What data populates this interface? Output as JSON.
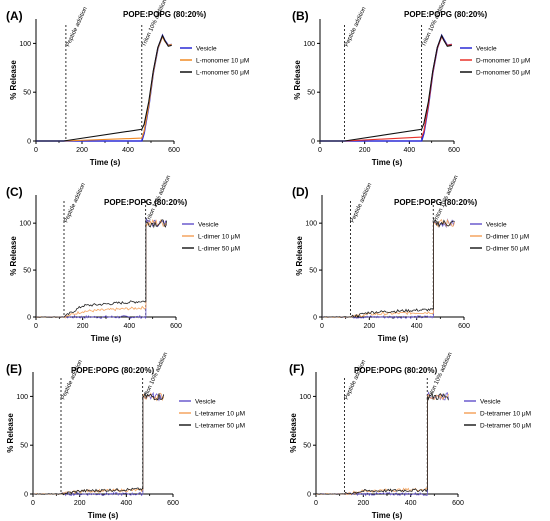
{
  "chart_data": [
    {
      "panel": "(A)",
      "type": "line",
      "title": "POPE:POPG (80:20%)",
      "xlabel": "Time (s)",
      "ylabel": "% Release",
      "xlim": [
        0,
        600
      ],
      "ylim": [
        0,
        125
      ],
      "xticks": [
        "0",
        "200",
        "400",
        "600"
      ],
      "yticks": [
        "0",
        "50",
        "100"
      ],
      "annotations": [
        {
          "text": "Peptide addition",
          "x": 130
        },
        {
          "text": "Triton 10% addition",
          "x": 460
        }
      ],
      "legend_position": "right",
      "noisy": false,
      "series": [
        {
          "name": "Vesicle",
          "color": "#2b2bd6",
          "x": [
            0,
            120,
            460,
            470,
            490,
            510,
            530,
            550,
            560,
            575,
            590
          ],
          "y": [
            0,
            0,
            0,
            8,
            35,
            70,
            95,
            108,
            103,
            98,
            99
          ]
        },
        {
          "name": "L-monomer 10 μM",
          "color": "#f08a24",
          "x": [
            0,
            120,
            460,
            470,
            490,
            510,
            530,
            550,
            560,
            575,
            590
          ],
          "y": [
            0,
            0,
            3,
            10,
            36,
            70,
            95,
            107,
            102,
            98,
            99
          ]
        },
        {
          "name": "L-monomer 50 μM",
          "color": "#111111",
          "x": [
            0,
            120,
            460,
            470,
            490,
            510,
            530,
            550,
            560,
            575,
            590
          ],
          "y": [
            0,
            0,
            12,
            17,
            40,
            72,
            96,
            108,
            103,
            97,
            98
          ]
        }
      ]
    },
    {
      "panel": "(B)",
      "type": "line",
      "title": "POPE:POPG (80:20%)",
      "xlabel": "Time (s)",
      "ylabel": "% Release",
      "xlim": [
        0,
        600
      ],
      "ylim": [
        0,
        125
      ],
      "xticks": [
        "0",
        "200",
        "400",
        "600"
      ],
      "yticks": [
        "0",
        "50",
        "100"
      ],
      "annotations": [
        {
          "text": "Peptide addition",
          "x": 110
        },
        {
          "text": "Triton 10% addition",
          "x": 455
        }
      ],
      "legend_position": "right",
      "noisy": false,
      "series": [
        {
          "name": "Vesicle",
          "color": "#2b2bd6",
          "x": [
            0,
            110,
            455,
            465,
            485,
            505,
            525,
            545,
            555,
            570,
            590
          ],
          "y": [
            0,
            0,
            0,
            8,
            35,
            70,
            95,
            108,
            104,
            98,
            99
          ]
        },
        {
          "name": "D-monomer 10 μM",
          "color": "#e8322b",
          "x": [
            0,
            110,
            455,
            465,
            485,
            505,
            525,
            545,
            555,
            570,
            590
          ],
          "y": [
            0,
            0,
            4,
            10,
            36,
            70,
            95,
            107,
            103,
            98,
            99
          ]
        },
        {
          "name": "D-monomer 50 μM",
          "color": "#111111",
          "x": [
            0,
            110,
            455,
            465,
            485,
            505,
            525,
            545,
            555,
            570,
            590
          ],
          "y": [
            0,
            0,
            12,
            18,
            40,
            72,
            96,
            108,
            103,
            97,
            98
          ]
        }
      ]
    },
    {
      "panel": "(C)",
      "type": "line",
      "title": "POPE:POPG (80:20%)",
      "xlabel": "Time (s)",
      "ylabel": "% Release",
      "xlim": [
        0,
        600
      ],
      "ylim": [
        0,
        130
      ],
      "xticks": [
        "0",
        "200",
        "400",
        "600"
      ],
      "yticks": [
        "0",
        "50",
        "100"
      ],
      "annotations": [
        {
          "text": "Peptide addition",
          "x": 120
        },
        {
          "text": "Triton 10% addition",
          "x": 470
        }
      ],
      "legend_position": "right",
      "noisy": true,
      "series": [
        {
          "name": "Vesicle",
          "color": "#6a5acd",
          "x": [
            0,
            120,
            470,
            471,
            560
          ],
          "y": [
            0,
            0,
            0,
            100,
            100
          ]
        },
        {
          "name": "L-dimer 10 μM",
          "color": "#f4a460",
          "x": [
            0,
            120,
            200,
            470,
            471,
            560
          ],
          "y": [
            0,
            0,
            6,
            10,
            100,
            100
          ]
        },
        {
          "name": "L-dimer 50 μM",
          "color": "#222222",
          "x": [
            0,
            120,
            200,
            470,
            471,
            560
          ],
          "y": [
            0,
            0,
            12,
            17,
            100,
            100
          ]
        }
      ]
    },
    {
      "panel": "(D)",
      "type": "line",
      "title": "POPE:POPG (80:20%)",
      "xlabel": "Time (s)",
      "ylabel": "% Release",
      "xlim": [
        0,
        600
      ],
      "ylim": [
        0,
        130
      ],
      "xticks": [
        "0",
        "200",
        "400",
        "600"
      ],
      "yticks": [
        "0",
        "50",
        "100"
      ],
      "annotations": [
        {
          "text": "Peptide addition",
          "x": 120
        },
        {
          "text": "Triton 10% addition",
          "x": 470
        }
      ],
      "legend_position": "right",
      "noisy": true,
      "series": [
        {
          "name": "Vesicle",
          "color": "#6a5acd",
          "x": [
            0,
            120,
            470,
            471,
            560
          ],
          "y": [
            0,
            0,
            0,
            100,
            100
          ]
        },
        {
          "name": "D-dimer 10 μM",
          "color": "#f4a460",
          "x": [
            0,
            120,
            200,
            470,
            471,
            560
          ],
          "y": [
            0,
            0,
            3,
            5,
            100,
            100
          ]
        },
        {
          "name": "D-dimer 50 μM",
          "color": "#222222",
          "x": [
            0,
            120,
            200,
            470,
            471,
            560
          ],
          "y": [
            0,
            0,
            5,
            8,
            100,
            100
          ]
        }
      ]
    },
    {
      "panel": "(E)",
      "type": "line",
      "title": "POPE:POPG (80:20%)",
      "xlabel": "Time (s)",
      "ylabel": "% Release",
      "xlim": [
        0,
        600
      ],
      "ylim": [
        0,
        125
      ],
      "xticks": [
        "0",
        "200",
        "400",
        "600"
      ],
      "yticks": [
        "0",
        "50",
        "100"
      ],
      "annotations": [
        {
          "text": "Peptide addition",
          "x": 120
        },
        {
          "text": "Triton 10% addition",
          "x": 470
        }
      ],
      "legend_position": "right",
      "noisy": true,
      "series": [
        {
          "name": "Vesicle",
          "color": "#6a5acd",
          "x": [
            0,
            120,
            470,
            471,
            560
          ],
          "y": [
            0,
            0,
            0,
            100,
            100
          ]
        },
        {
          "name": "L-tetramer 10 μM",
          "color": "#f4a460",
          "x": [
            0,
            120,
            200,
            470,
            471,
            560
          ],
          "y": [
            0,
            0,
            3,
            4,
            100,
            100
          ]
        },
        {
          "name": "L-tetramer 50 μM",
          "color": "#222222",
          "x": [
            0,
            120,
            200,
            470,
            471,
            560
          ],
          "y": [
            0,
            0,
            3,
            5,
            100,
            100
          ]
        }
      ]
    },
    {
      "panel": "(F)",
      "type": "line",
      "title": "POPE:POPG (80:20%)",
      "xlabel": "Time (s)",
      "ylabel": "% Release",
      "xlim": [
        0,
        600
      ],
      "ylim": [
        0,
        125
      ],
      "xticks": [
        "0",
        "200",
        "400",
        "600"
      ],
      "yticks": [
        "0",
        "50",
        "100"
      ],
      "annotations": [
        {
          "text": "Peptide addition",
          "x": 120
        },
        {
          "text": "Triton 10% addition",
          "x": 470
        }
      ],
      "legend_position": "right",
      "noisy": true,
      "series": [
        {
          "name": "Vesicle",
          "color": "#6a5acd",
          "x": [
            0,
            120,
            470,
            471,
            560
          ],
          "y": [
            0,
            0,
            0,
            100,
            100
          ]
        },
        {
          "name": "D-tetramer 10 μM",
          "color": "#f4a460",
          "x": [
            0,
            120,
            200,
            470,
            471,
            560
          ],
          "y": [
            0,
            0,
            3,
            5,
            100,
            100
          ]
        },
        {
          "name": "D-tetramer 50 μM",
          "color": "#222222",
          "x": [
            0,
            120,
            200,
            470,
            471,
            560
          ],
          "y": [
            0,
            0,
            3,
            4,
            100,
            100
          ]
        }
      ]
    }
  ]
}
